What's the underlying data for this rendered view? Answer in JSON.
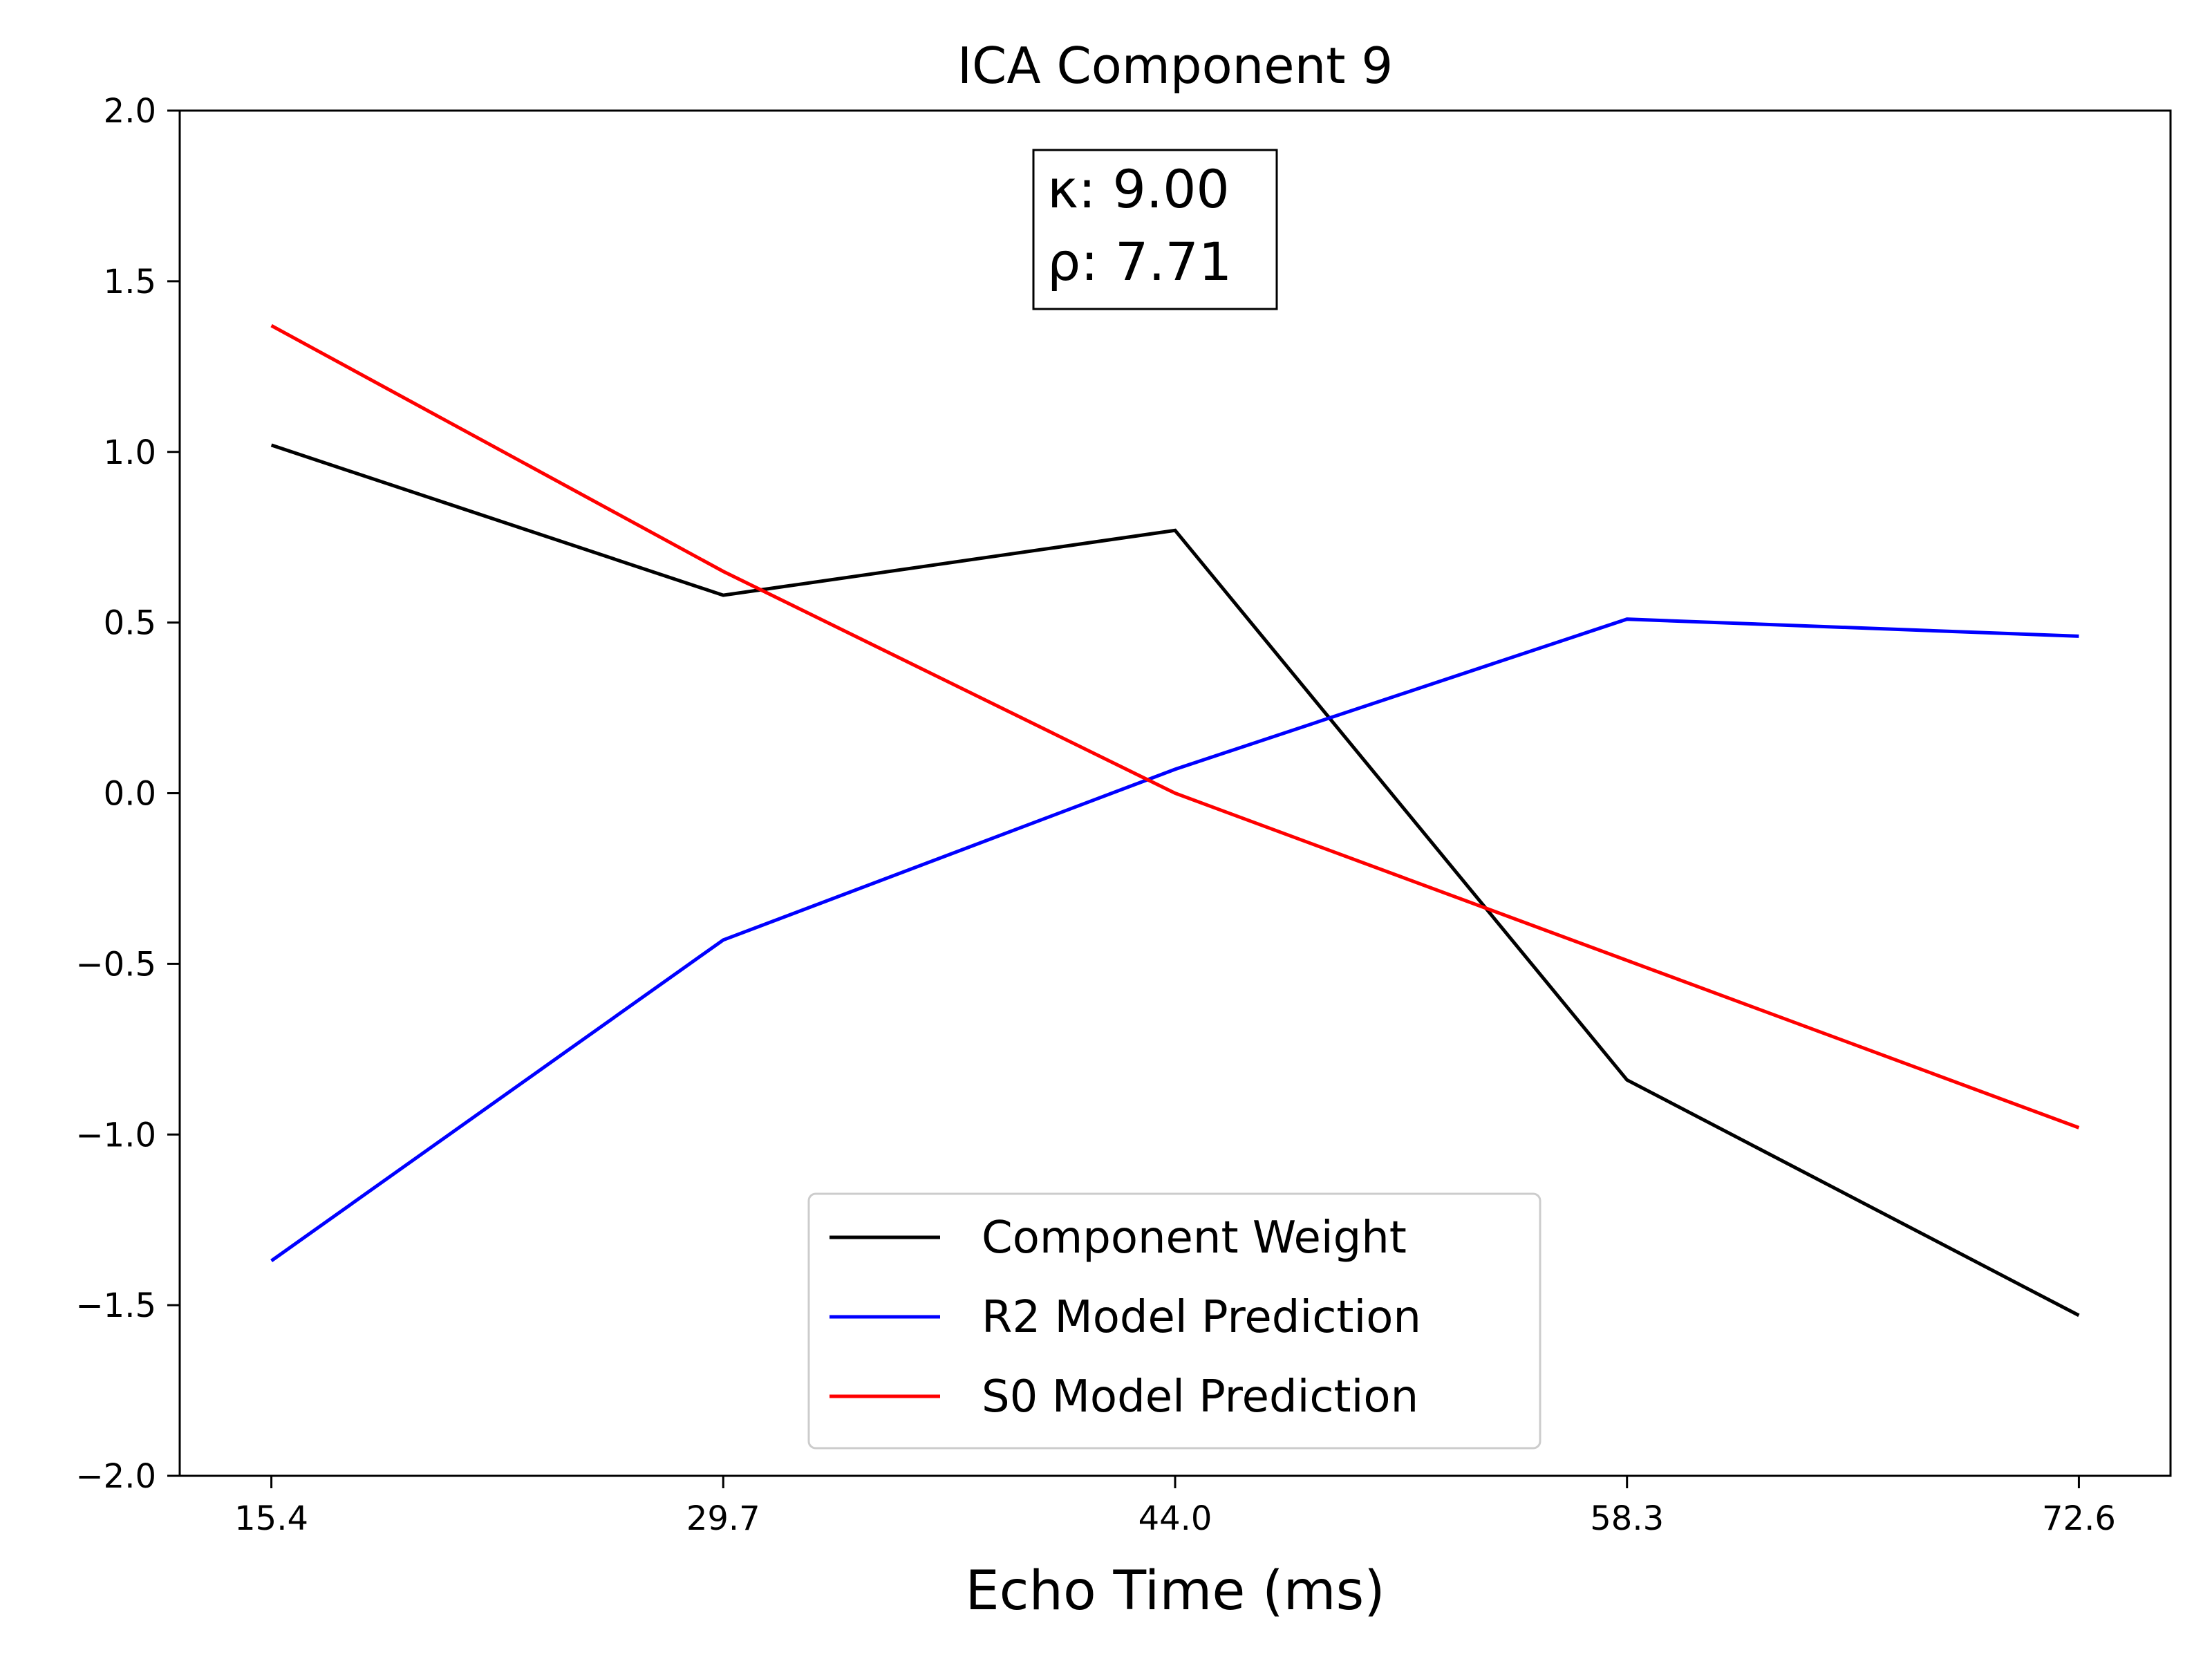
{
  "chart_data": {
    "type": "line",
    "title": "ICA Component 9",
    "xlabel": "Echo Time (ms)",
    "ylabel": "",
    "x": [
      15.4,
      29.7,
      44.0,
      58.3,
      72.6
    ],
    "x_tick_labels": [
      "15.4",
      "29.7",
      "44.0",
      "58.3",
      "72.6"
    ],
    "xlim": [
      12.5,
      75.5
    ],
    "ylim": [
      -2.0,
      2.0
    ],
    "y_ticks": [
      2.0,
      1.5,
      1.0,
      0.5,
      0.0,
      -0.5,
      -1.0,
      -1.5,
      -2.0
    ],
    "y_tick_labels": [
      "2.0",
      "1.5",
      "1.0",
      "0.5",
      "0.0",
      "−0.5",
      "−1.0",
      "−1.5",
      "−2.0"
    ],
    "grid": false,
    "legend_position": "bottom-center",
    "series": [
      {
        "name": "Component Weight",
        "color": "#000000",
        "values": [
          1.02,
          0.58,
          0.77,
          -0.84,
          -1.53
        ]
      },
      {
        "name": "R2 Model Prediction",
        "color": "#0000ff",
        "values": [
          -1.37,
          -0.43,
          0.07,
          0.51,
          0.46
        ]
      },
      {
        "name": "S0 Model Prediction",
        "color": "#ff0000",
        "values": [
          1.37,
          0.65,
          0.0,
          -0.49,
          -0.98
        ]
      }
    ],
    "annotation": {
      "kappa_label": "κ: 9.00",
      "rho_label": "ρ: 7.71"
    }
  }
}
